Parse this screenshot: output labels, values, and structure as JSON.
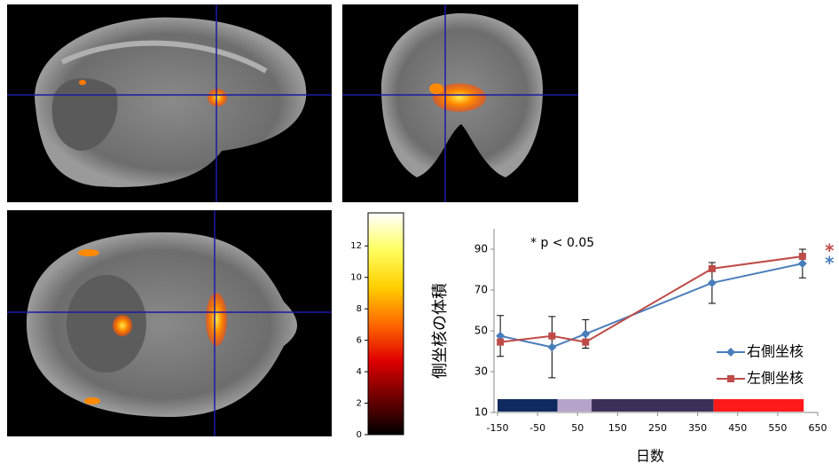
{
  "chart_data": [
    {
      "type": "colorbar",
      "clim": [
        0,
        14.1
      ],
      "ticks": [
        0,
        2,
        4,
        6,
        8,
        10,
        12
      ],
      "colormap": [
        "#000000",
        "#6e0000",
        "#e00000",
        "#ff6a00",
        "#ffd000",
        "#ffff60",
        "#ffffff"
      ]
    },
    {
      "type": "line",
      "annotation": "* p < 0.05",
      "xlabel": "日数",
      "ylabel": "側坐核の体積",
      "xlim": [
        -150,
        650
      ],
      "xticks": [
        -150,
        -50,
        50,
        150,
        250,
        350,
        450,
        550,
        650
      ],
      "ylim": [
        10,
        100
      ],
      "yticks": [
        10,
        30,
        50,
        70,
        90
      ],
      "x": [
        -143,
        -14,
        70,
        386,
        612
      ],
      "series": [
        {
          "name": "右側坐核",
          "color": "#4a7ebb",
          "marker": "diamond",
          "values": [
            47.5,
            42,
            48.5,
            73.5,
            83
          ],
          "errors": [
            10,
            15,
            7,
            10,
            7
          ],
          "significance": "*"
        },
        {
          "name": "左側坐核",
          "color": "#be4b48",
          "marker": "square",
          "values": [
            44.5,
            47.5,
            44.5,
            80.5,
            86.5
          ],
          "significance": "*"
        }
      ],
      "periods": [
        {
          "start": -150,
          "end": 0,
          "color": "#0f2a5e"
        },
        {
          "start": 0,
          "end": 85,
          "color": "#b7a4cc"
        },
        {
          "start": 85,
          "end": 390,
          "color": "#3d3058"
        },
        {
          "start": 390,
          "end": 615,
          "color": "#ff1a1a"
        }
      ]
    }
  ]
}
